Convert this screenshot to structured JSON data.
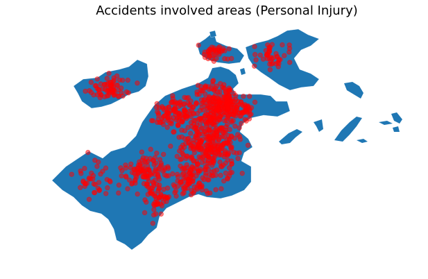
{
  "chart_data": {
    "type": "map",
    "title": "Accidents involved areas (Personal Injury)",
    "base_map": {
      "region": "Boston neighborhoods",
      "fill_color": "#1f77b4",
      "boundary_color": "#ffffff"
    },
    "points_layer": {
      "category": "Personal Injury",
      "marker_color": "#ff0000",
      "marker_alpha": 0.5,
      "marker_shape": "circle"
    },
    "axes": "off",
    "grid": false,
    "legend": "none"
  }
}
